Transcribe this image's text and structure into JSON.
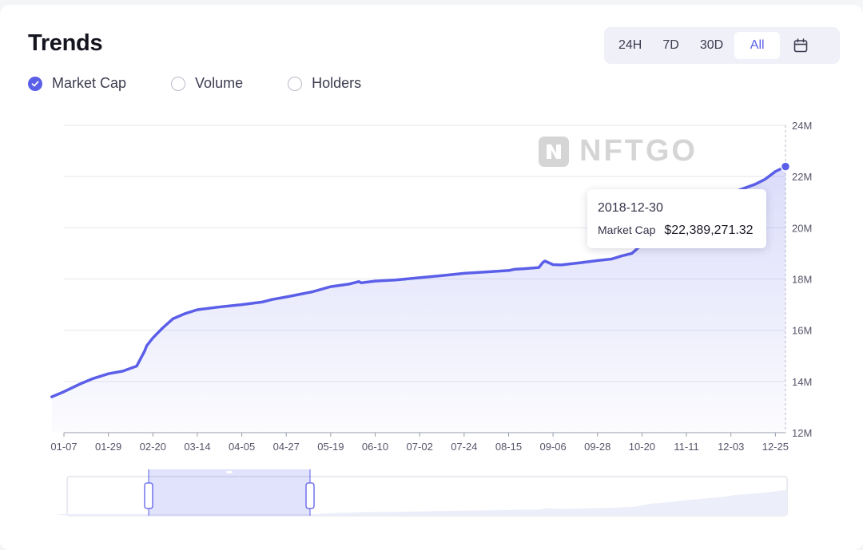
{
  "header": {
    "title": "Trends"
  },
  "range_selector": {
    "options": [
      {
        "label": "24H"
      },
      {
        "label": "7D"
      },
      {
        "label": "30D"
      },
      {
        "label": "All"
      }
    ],
    "active": "All"
  },
  "metrics": [
    {
      "label": "Market Cap",
      "checked": true
    },
    {
      "label": "Volume",
      "checked": false
    },
    {
      "label": "Holders",
      "checked": false
    }
  ],
  "watermark": {
    "text": "NFTGO"
  },
  "tooltip": {
    "date": "2018-12-30",
    "label": "Market Cap",
    "value": "$22,389,271.32"
  },
  "colors": {
    "accent": "#5b5fe8",
    "area_fill": "#e8e9fc",
    "grid": "#e6e7ee"
  },
  "chart_data": {
    "type": "area",
    "title": "",
    "xlabel": "",
    "ylabel": "",
    "ylim": [
      12000000,
      24000000
    ],
    "yticks": [
      {
        "value": 12000000,
        "label": "12M"
      },
      {
        "value": 14000000,
        "label": "14M"
      },
      {
        "value": 16000000,
        "label": "16M"
      },
      {
        "value": 18000000,
        "label": "18M"
      },
      {
        "value": 20000000,
        "label": "20M"
      },
      {
        "value": 22000000,
        "label": "22M"
      },
      {
        "value": 24000000,
        "label": "24M"
      }
    ],
    "xticks": [
      "01-07",
      "01-29",
      "02-20",
      "03-14",
      "04-05",
      "04-27",
      "05-19",
      "06-10",
      "07-02",
      "07-24",
      "08-15",
      "09-06",
      "09-28",
      "10-20",
      "11-11",
      "12-03",
      "12-25"
    ],
    "grid": true,
    "series": [
      {
        "name": "Market Cap",
        "x": [
          "01-01",
          "01-07",
          "01-15",
          "01-21",
          "01-29",
          "02-05",
          "02-12",
          "02-16",
          "02-17",
          "02-20",
          "02-25",
          "03-02",
          "03-08",
          "03-14",
          "03-24",
          "04-05",
          "04-15",
          "04-20",
          "04-27",
          "05-10",
          "05-19",
          "05-28",
          "06-02",
          "06-03",
          "06-10",
          "06-20",
          "07-02",
          "07-15",
          "07-24",
          "08-05",
          "08-15",
          "08-18",
          "08-22",
          "08-30",
          "09-01",
          "09-02",
          "09-06",
          "09-10",
          "09-20",
          "09-28",
          "10-05",
          "10-10",
          "10-15",
          "10-20",
          "10-25",
          "11-01",
          "11-05",
          "11-11",
          "11-20",
          "11-25",
          "12-01",
          "12-03",
          "12-08",
          "12-15",
          "12-20",
          "12-25",
          "12-30"
        ],
        "values": [
          13400000,
          13600000,
          13900000,
          14100000,
          14300000,
          14400000,
          14600000,
          15200000,
          15400000,
          15700000,
          16100000,
          16450000,
          16650000,
          16800000,
          16900000,
          17000000,
          17100000,
          17200000,
          17300000,
          17500000,
          17700000,
          17800000,
          17900000,
          17850000,
          17920000,
          17960000,
          18050000,
          18150000,
          18220000,
          18280000,
          18330000,
          18380000,
          18400000,
          18450000,
          18650000,
          18700000,
          18560000,
          18550000,
          18640000,
          18720000,
          18780000,
          18900000,
          19000000,
          19350000,
          19700000,
          19900000,
          20100000,
          20400000,
          20700000,
          20900000,
          21100000,
          21350000,
          21500000,
          21700000,
          21900000,
          22200000,
          22390000
        ]
      }
    ]
  }
}
